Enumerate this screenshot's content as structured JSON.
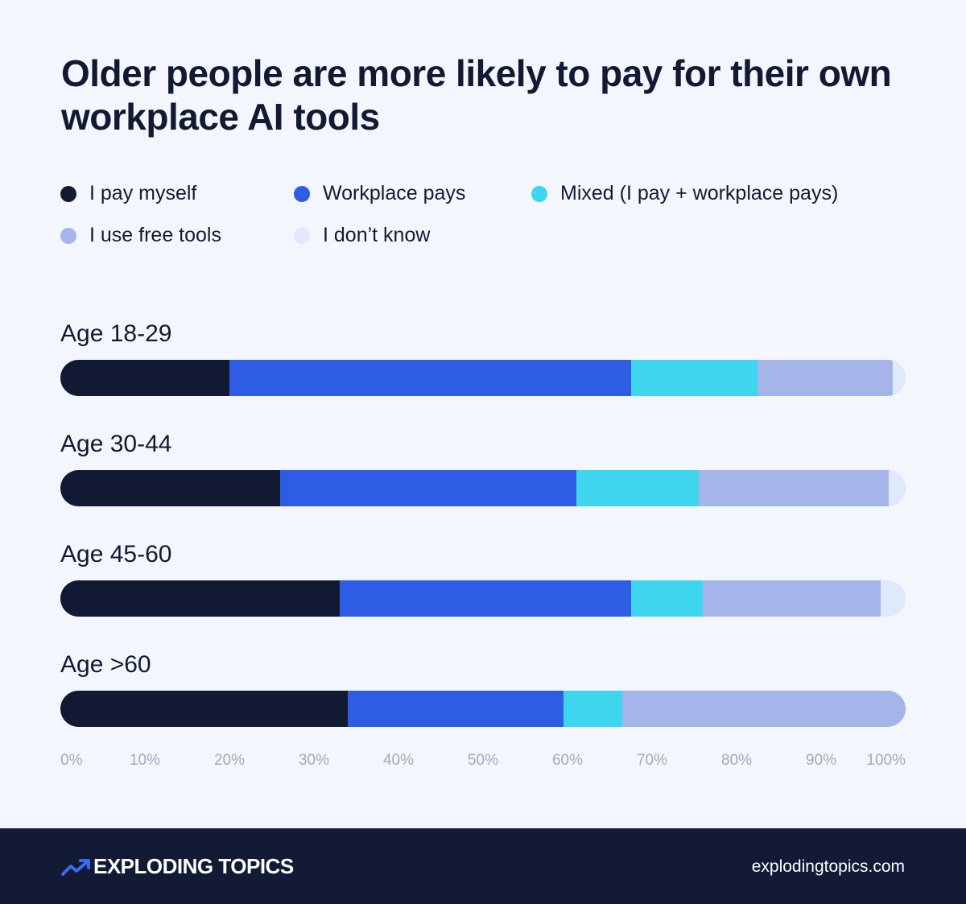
{
  "title": "Older people are more likely to pay for their own workplace AI tools",
  "colors": {
    "background": "#f3f7fd",
    "footer": "#131a35"
  },
  "chart_data": {
    "type": "bar",
    "orientation": "horizontal",
    "stacked": true,
    "categories": [
      "Age 18-29",
      "Age 30-44",
      "Age 45-60",
      "Age >60"
    ],
    "series": [
      {
        "name": "I pay myself",
        "color": "#121a33",
        "values": [
          20,
          26,
          33,
          34
        ]
      },
      {
        "name": "Workplace pays",
        "color": "#2f5ce4",
        "values": [
          47.5,
          35,
          34.5,
          25.5
        ]
      },
      {
        "name": "Mixed (I pay + workplace pays)",
        "color": "#3ed5ee",
        "values": [
          15,
          14.5,
          8.5,
          7
        ]
      },
      {
        "name": "I use free tools",
        "color": "#a5b5ea",
        "values": [
          16,
          22.5,
          21,
          33.5
        ]
      },
      {
        "name": "I don’t know",
        "color": "#dfe9fb",
        "values": [
          1.5,
          2,
          3,
          0
        ]
      }
    ],
    "xlim": [
      0,
      100
    ],
    "ticks": [
      "0%",
      "10%",
      "20%",
      "30%",
      "40%",
      "50%",
      "60%",
      "70%",
      "80%",
      "90%",
      "100%"
    ],
    "legend_position": "top"
  },
  "footer": {
    "brand": "EXPLODING TOPICS",
    "website": "explodingtopics.com",
    "logo_icon": "trend-arrow-icon"
  }
}
